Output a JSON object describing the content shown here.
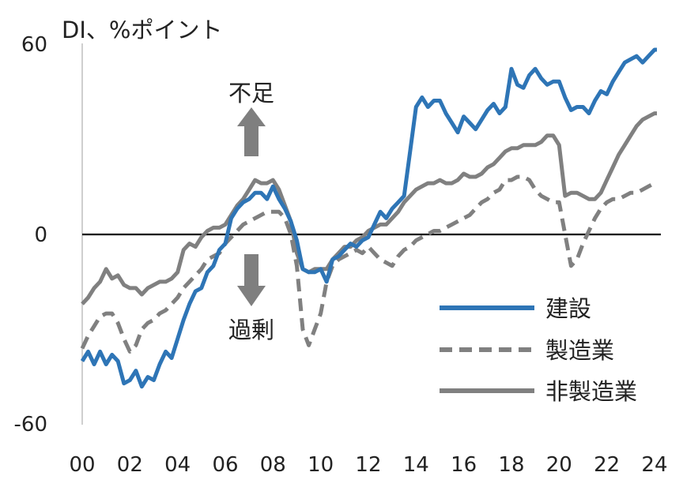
{
  "chart_data": {
    "type": "line",
    "title": "DI、%ポイント",
    "xlabel": "",
    "ylabel": "",
    "ylim": [
      -60,
      60
    ],
    "xlim": [
      2000,
      2024.2
    ],
    "yticks": [
      "60",
      "0",
      "-60"
    ],
    "xticks": [
      "00",
      "02",
      "04",
      "06",
      "08",
      "10",
      "12",
      "14",
      "16",
      "18",
      "20",
      "22",
      "24"
    ],
    "grid": false,
    "legend_position": "bottom-right",
    "annotations": {
      "up_label": "不足",
      "down_label": "過剰"
    },
    "series": [
      {
        "name": "建設",
        "color": "#2e75b6",
        "dash": "solid",
        "x": [
          2000,
          2000.25,
          2000.5,
          2000.75,
          2001,
          2001.25,
          2001.5,
          2001.75,
          2002,
          2002.25,
          2002.5,
          2002.75,
          2003,
          2003.25,
          2003.5,
          2003.75,
          2004,
          2004.25,
          2004.5,
          2004.75,
          2005,
          2005.25,
          2005.5,
          2005.75,
          2006,
          2006.25,
          2006.5,
          2006.75,
          2007,
          2007.25,
          2007.5,
          2007.75,
          2008,
          2008.25,
          2008.5,
          2008.75,
          2009,
          2009.25,
          2009.5,
          2009.75,
          2010,
          2010.25,
          2010.5,
          2010.75,
          2011,
          2011.25,
          2011.5,
          2011.75,
          2012,
          2012.25,
          2012.5,
          2012.75,
          2013,
          2013.25,
          2013.5,
          2013.75,
          2014,
          2014.25,
          2014.5,
          2014.75,
          2015,
          2015.25,
          2015.5,
          2015.75,
          2016,
          2016.25,
          2016.5,
          2016.75,
          2017,
          2017.25,
          2017.5,
          2017.75,
          2018,
          2018.25,
          2018.5,
          2018.75,
          2019,
          2019.25,
          2019.5,
          2019.75,
          2020,
          2020.25,
          2020.5,
          2020.75,
          2021,
          2021.25,
          2021.5,
          2021.75,
          2022,
          2022.25,
          2022.5,
          2022.75,
          2023,
          2023.25,
          2023.5,
          2023.75,
          2024,
          2024.1
        ],
        "values": [
          -40,
          -37,
          -41,
          -37,
          -41,
          -38,
          -40,
          -47,
          -46,
          -43,
          -48,
          -45,
          -46,
          -41,
          -37,
          -39,
          -33,
          -27,
          -22,
          -18,
          -17,
          -12,
          -10,
          -5,
          -3,
          5,
          8,
          10,
          11,
          13,
          13,
          11,
          15,
          11,
          8,
          4,
          -2,
          -11,
          -12,
          -12,
          -11,
          -15,
          -8,
          -7,
          -5,
          -3,
          -4,
          -2,
          -1,
          3,
          7,
          5,
          8,
          10,
          12,
          26,
          40,
          43,
          40,
          42,
          42,
          38,
          35,
          32,
          37,
          35,
          33,
          36,
          39,
          41,
          38,
          40,
          52,
          47,
          46,
          50,
          52,
          49,
          47,
          48,
          48,
          43,
          39,
          40,
          40,
          38,
          42,
          45,
          44,
          48,
          51,
          54,
          55,
          56,
          54,
          56,
          58,
          58
        ]
      },
      {
        "name": "製造業",
        "color": "#808080",
        "dash": "dashed",
        "x": [
          2000,
          2000.25,
          2000.5,
          2000.75,
          2001,
          2001.25,
          2001.5,
          2001.75,
          2002,
          2002.25,
          2002.5,
          2002.75,
          2003,
          2003.25,
          2003.5,
          2003.75,
          2004,
          2004.25,
          2004.5,
          2004.75,
          2005,
          2005.25,
          2005.5,
          2005.75,
          2006,
          2006.25,
          2006.5,
          2006.75,
          2007,
          2007.25,
          2007.5,
          2007.75,
          2008,
          2008.25,
          2008.5,
          2008.75,
          2009,
          2009.25,
          2009.5,
          2009.75,
          2010,
          2010.25,
          2010.5,
          2010.75,
          2011,
          2011.25,
          2011.5,
          2011.75,
          2012,
          2012.25,
          2012.5,
          2012.75,
          2013,
          2013.25,
          2013.5,
          2013.75,
          2014,
          2014.25,
          2014.5,
          2014.75,
          2015,
          2015.25,
          2015.5,
          2015.75,
          2016,
          2016.25,
          2016.5,
          2016.75,
          2017,
          2017.25,
          2017.5,
          2017.75,
          2018,
          2018.25,
          2018.5,
          2018.75,
          2019,
          2019.25,
          2019.5,
          2019.75,
          2020,
          2020.25,
          2020.5,
          2020.75,
          2021,
          2021.25,
          2021.5,
          2021.75,
          2022,
          2022.25,
          2022.5,
          2022.75,
          2023,
          2023.25,
          2023.5,
          2023.75,
          2024,
          2024.1
        ],
        "values": [
          -36,
          -32,
          -29,
          -26,
          -25,
          -25,
          -28,
          -33,
          -37,
          -35,
          -30,
          -28,
          -27,
          -25,
          -24,
          -22,
          -20,
          -17,
          -15,
          -13,
          -11,
          -8,
          -7,
          -6,
          -3,
          -1,
          1,
          3,
          4,
          5,
          6,
          7,
          7,
          7,
          5,
          0,
          -10,
          -30,
          -35,
          -30,
          -25,
          -15,
          -10,
          -8,
          -7,
          -6,
          -5,
          -6,
          -4,
          -6,
          -8,
          -9,
          -10,
          -7,
          -5,
          -4,
          -2,
          -1,
          0,
          1,
          1,
          2,
          3,
          4,
          5,
          6,
          8,
          10,
          11,
          13,
          14,
          17,
          17,
          18,
          18,
          17,
          14,
          12,
          11,
          10,
          10,
          0,
          -10,
          -8,
          -3,
          1,
          5,
          8,
          10,
          11,
          11,
          12,
          13,
          13,
          14,
          15,
          16,
          16
        ]
      },
      {
        "name": "非製造業",
        "color": "#808080",
        "dash": "solid",
        "x": [
          2000,
          2000.25,
          2000.5,
          2000.75,
          2001,
          2001.25,
          2001.5,
          2001.75,
          2002,
          2002.25,
          2002.5,
          2002.75,
          2003,
          2003.25,
          2003.5,
          2003.75,
          2004,
          2004.25,
          2004.5,
          2004.75,
          2005,
          2005.25,
          2005.5,
          2005.75,
          2006,
          2006.25,
          2006.5,
          2006.75,
          2007,
          2007.25,
          2007.5,
          2007.75,
          2008,
          2008.25,
          2008.5,
          2008.75,
          2009,
          2009.25,
          2009.5,
          2009.75,
          2010,
          2010.25,
          2010.5,
          2010.75,
          2011,
          2011.25,
          2011.5,
          2011.75,
          2012,
          2012.25,
          2012.5,
          2012.75,
          2013,
          2013.25,
          2013.5,
          2013.75,
          2014,
          2014.25,
          2014.5,
          2014.75,
          2015,
          2015.25,
          2015.5,
          2015.75,
          2016,
          2016.25,
          2016.5,
          2016.75,
          2017,
          2017.25,
          2017.5,
          2017.75,
          2018,
          2018.25,
          2018.5,
          2018.75,
          2019,
          2019.25,
          2019.5,
          2019.75,
          2020,
          2020.25,
          2020.5,
          2020.75,
          2021,
          2021.25,
          2021.5,
          2021.75,
          2022,
          2022.25,
          2022.5,
          2022.75,
          2023,
          2023.25,
          2023.5,
          2023.75,
          2024,
          2024.1
        ],
        "values": [
          -22,
          -20,
          -17,
          -15,
          -11,
          -14,
          -13,
          -16,
          -17,
          -17,
          -19,
          -17,
          -16,
          -15,
          -15,
          -14,
          -12,
          -5,
          -3,
          -4,
          -1,
          1,
          2,
          2,
          3,
          6,
          9,
          11,
          14,
          17,
          16,
          16,
          17,
          14,
          9,
          4,
          -6,
          -11,
          -12,
          -11,
          -11,
          -11,
          -8,
          -6,
          -4,
          -4,
          -2,
          -1,
          1,
          2,
          3,
          3,
          5,
          7,
          10,
          12,
          14,
          15,
          16,
          16,
          17,
          16,
          16,
          17,
          19,
          18,
          18,
          19,
          21,
          22,
          24,
          26,
          27,
          27,
          28,
          28,
          28,
          29,
          31,
          31,
          28,
          12,
          13,
          13,
          12,
          11,
          11,
          13,
          17,
          21,
          25,
          28,
          31,
          34,
          36,
          37,
          38,
          38
        ]
      }
    ]
  }
}
